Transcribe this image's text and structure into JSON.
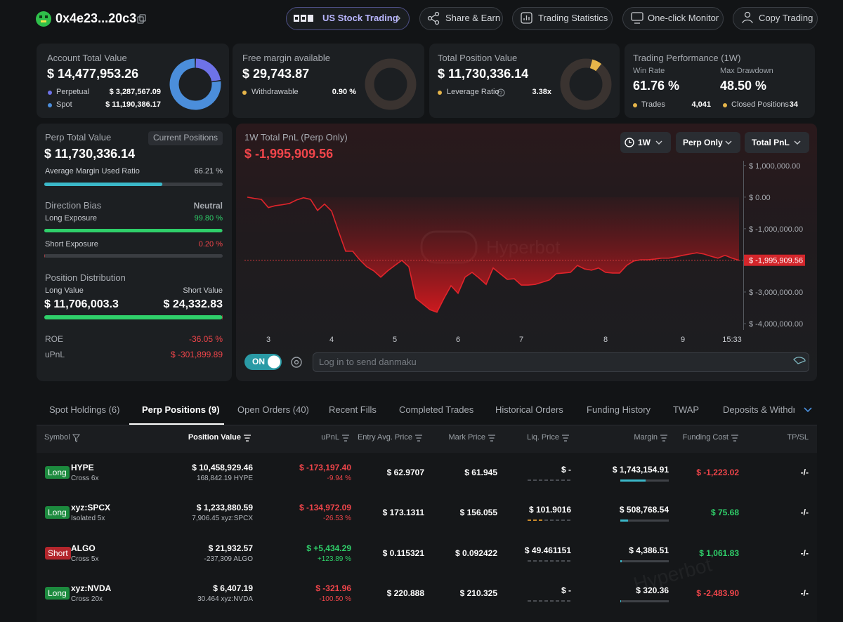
{
  "header": {
    "address": "0x4e23...20c3",
    "buttons": [
      "US Stock Trading",
      "Share & Earn",
      "Trading Statistics",
      "One-click Monitor",
      "Copy Trading"
    ]
  },
  "summary": {
    "account": {
      "title": "Account Total Value",
      "value": "$ 14,477,953.26",
      "items": [
        {
          "name": "Perpetual",
          "value": 3287567.09,
          "label": "$ 3,287,567.09",
          "color": "#6e72e8"
        },
        {
          "name": "Spot",
          "value": 11190386.17,
          "label": "$ 11,190,386.17",
          "color": "#4b8edb"
        }
      ]
    },
    "margin": {
      "title": "Free margin available",
      "value": "$ 29,743.87",
      "item": {
        "name": "Withdrawable",
        "label": "0.90 %"
      }
    },
    "position": {
      "title": "Total Position Value",
      "value": "$ 11,730,336.14",
      "item": {
        "name": "Leverage Ratio",
        "label": "3.38x"
      }
    },
    "performance": {
      "title": "Trading Performance (1W)",
      "stats": [
        {
          "name": "Win Rate",
          "value": "61.76 %"
        },
        {
          "name": "Max Drawdown",
          "value": "48.50 %"
        }
      ],
      "items": [
        {
          "name": "Trades",
          "value": "4,041"
        },
        {
          "name": "Closed Positions",
          "value": "34"
        }
      ]
    }
  },
  "perp": {
    "title": "Perp Total Value",
    "badge": "Current Positions",
    "value": "$ 11,730,336.14",
    "margin_ratio": {
      "name": "Average Margin Used Ratio",
      "value": 66.21,
      "label": "66.21 %"
    },
    "bias": {
      "title": "Direction Bias",
      "status": "Neutral",
      "long": {
        "name": "Long Exposure",
        "value": 99.8,
        "label": "99.80 %"
      },
      "short": {
        "name": "Short Exposure",
        "value": 0.2,
        "label": "0.20 %"
      }
    },
    "distribution": {
      "title": "Position Distribution",
      "long": {
        "name": "Long Value",
        "value": 11706003.3,
        "label": "$ 11,706,003.3"
      },
      "short": {
        "name": "Short Value",
        "value": 24332.83,
        "label": "$ 24,332.83"
      }
    },
    "roe": {
      "name": "ROE",
      "value": "-36.05 %"
    },
    "upnl": {
      "name": "uPnL",
      "value": "$ -301,899.89"
    }
  },
  "pnl": {
    "filters": [
      "1W",
      "Perp Only",
      "Total PnL"
    ],
    "watermark": "Hyperbot",
    "toggle": "ON",
    "input_placeholder": "Log in to send danmaku"
  },
  "chart_data": {
    "type": "line",
    "title": "1W Total PnL (Perp Only)",
    "color": "#e0242b",
    "grid": false,
    "categories": [
      null,
      null,
      null,
      "3",
      null,
      null,
      null,
      null,
      null,
      null,
      null,
      null,
      "4",
      null,
      null,
      null,
      null,
      null,
      null,
      null,
      null,
      "5",
      null,
      null,
      null,
      null,
      null,
      null,
      null,
      null,
      "6",
      null,
      null,
      null,
      null,
      null,
      null,
      null,
      null,
      "7",
      null,
      null,
      null,
      null,
      null,
      null,
      null,
      null,
      null,
      null,
      null,
      "8",
      null,
      null,
      null,
      null,
      null,
      null,
      null,
      null,
      null,
      null,
      "9",
      null,
      null,
      null,
      null,
      null,
      null,
      "15:33",
      null
    ],
    "values": [
      0,
      -40000,
      -70000,
      -330000,
      -270000,
      -240000,
      -200000,
      -90000,
      -20000,
      -70000,
      -420000,
      -220000,
      -440000,
      -1090000,
      -1710000,
      -1710000,
      -1980000,
      -2200000,
      -2330000,
      -2530000,
      -2330000,
      -2160000,
      -2000000,
      -2200000,
      -3200000,
      -3380000,
      -3560000,
      -3640000,
      -3200000,
      -2800000,
      -3040000,
      -2530000,
      -2380000,
      -2560000,
      -2760000,
      -2240000,
      -2420000,
      -2600000,
      -2580000,
      -2780000,
      -2780000,
      -2760000,
      -2690000,
      -2620000,
      -2420000,
      -2400000,
      -2380000,
      -2160000,
      -2270000,
      -2310000,
      -2240000,
      -2380000,
      -2400000,
      -2400000,
      -2160000,
      -2020000,
      -1980000,
      -1980000,
      -1960000,
      -1930000,
      -1930000,
      -1890000,
      -1840000,
      -1800000,
      -1760000,
      -1800000,
      -1870000,
      -1930000,
      -1840000,
      -1930000,
      -1995909.56
    ],
    "last_value": -1995909.56,
    "last_value_label": "$ -1,995,909.56",
    "ylim": [
      -4200000,
      1150000
    ],
    "yticks": [
      {
        "value": 1000000,
        "label": "$ 1,000,000.00"
      },
      {
        "value": 0,
        "label": "$ 0.00"
      },
      {
        "value": -1000000,
        "label": "$ -1,000,000.00"
      },
      {
        "value": -3000000,
        "label": "$ -3,000,000.00"
      },
      {
        "value": -4000000,
        "label": "$ -4,000,000.00"
      }
    ]
  },
  "tabs": [
    "Spot Holdings (6)",
    "Perp Positions (9)",
    "Open Orders (40)",
    "Recent Fills",
    "Completed Trades",
    "Historical Orders",
    "Funding History",
    "TWAP",
    "Deposits & Withdrawals"
  ],
  "active_tab": 1,
  "table": {
    "columns": [
      "Symbol",
      "Position Value",
      "uPnL",
      "Entry Avg. Price",
      "Mark Price",
      "Liq. Price",
      "Margin",
      "Funding Cost",
      "TP/SL"
    ],
    "rows": [
      {
        "side": "Long",
        "symbol": "HYPE",
        "mode": "Cross 6x",
        "position_value": "$ 10,458,929.46",
        "size": "168,842.19 HYPE",
        "upnl": "$ -173,197.40",
        "upnl_pct": "-9.94 %",
        "entry": "$ 62.9707",
        "mark": "$ 61.945",
        "liq": "$ -",
        "margin": "$ 1,743,154.91",
        "funding": "$ -1,223.02",
        "tpsl": "-/-"
      },
      {
        "side": "Long",
        "symbol": "xyz:SPCX",
        "mode": "Isolated 5x",
        "position_value": "$ 1,233,880.59",
        "size": "7,906.45 xyz:SPCX",
        "upnl": "$ -134,972.09",
        "upnl_pct": "-26.53 %",
        "entry": "$ 173.1311",
        "mark": "$ 156.055",
        "liq": "$ 101.9016",
        "margin": "$ 508,768.54",
        "funding": "$ 75.68",
        "tpsl": "-/-"
      },
      {
        "side": "Short",
        "symbol": "ALGO",
        "mode": "Cross 5x",
        "position_value": "$ 21,932.57",
        "size": "-237,309 ALGO",
        "upnl": "$ +5,434.29",
        "upnl_pct": "+123.89 %",
        "entry": "$ 0.115321",
        "mark": "$ 0.092422",
        "liq": "$ 49.461151",
        "margin": "$ 4,386.51",
        "funding": "$ 1,061.83",
        "tpsl": "-/-"
      },
      {
        "side": "Long",
        "symbol": "xyz:NVDA",
        "mode": "Cross 20x",
        "position_value": "$ 6,407.19",
        "size": "30.464 xyz:NVDA",
        "upnl": "$ -321.96",
        "upnl_pct": "-100.50 %",
        "entry": "$ 220.888",
        "mark": "$ 210.325",
        "liq": "$ -",
        "margin": "$ 320.36",
        "funding": "$ -2,483.90",
        "tpsl": "-/-"
      }
    ],
    "watermark": "Hyperbot"
  }
}
